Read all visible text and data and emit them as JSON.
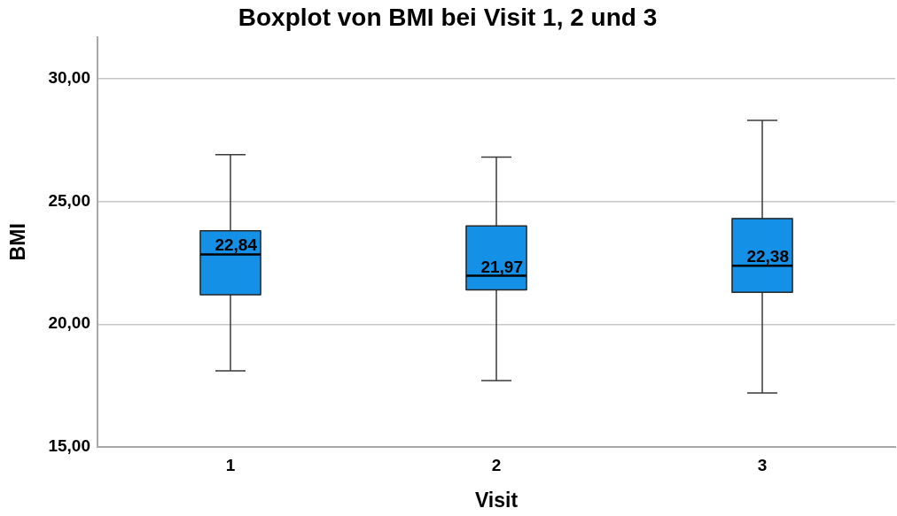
{
  "chart_data": {
    "type": "box",
    "title": "Boxplot von BMI bei Visit 1, 2 und 3",
    "xlabel": "Visit",
    "ylabel": "BMI",
    "categories": [
      "1",
      "2",
      "3"
    ],
    "color": "#1490e6",
    "boxes": [
      {
        "low": 18.1,
        "q1": 21.2,
        "median": 22.84,
        "q3": 23.8,
        "high": 26.9
      },
      {
        "low": 17.7,
        "q1": 21.4,
        "median": 21.97,
        "q3": 24.0,
        "high": 26.8
      },
      {
        "low": 17.2,
        "q1": 21.3,
        "median": 22.38,
        "q3": 24.3,
        "high": 28.3
      }
    ],
    "value_labels": [
      "22,84",
      "21,97",
      "22,38"
    ],
    "ylim": [
      15,
      31.7
    ],
    "yticks": [
      {
        "value": 15,
        "label": "15,00"
      },
      {
        "value": 20,
        "label": "20,00"
      },
      {
        "value": 25,
        "label": "25,00"
      },
      {
        "value": 30,
        "label": "30,00"
      }
    ],
    "grid": "y"
  }
}
